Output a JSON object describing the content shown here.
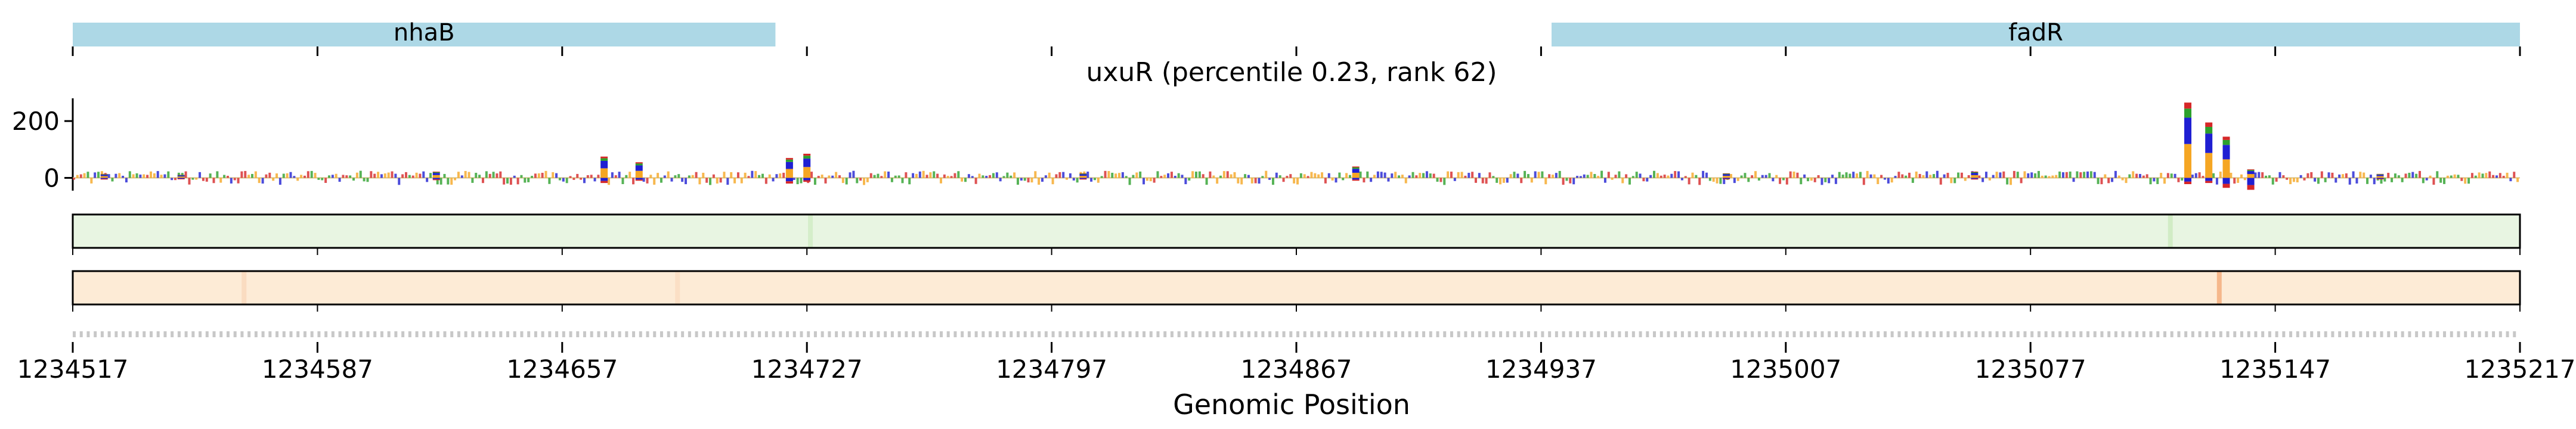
{
  "chart_data": {
    "type": "genome-track",
    "title": "uxuR (percentile 0.23, rank 62)",
    "xlabel": "Genomic Position",
    "ylabel": "",
    "xlim": [
      1234517,
      1235217
    ],
    "x_ticks": [
      1234517,
      1234587,
      1234657,
      1234727,
      1234797,
      1234867,
      1234937,
      1235007,
      1235077,
      1235147,
      1235217
    ],
    "genes": [
      {
        "name": "nhaB",
        "start": 1234517,
        "end": 1234718
      },
      {
        "name": "fadR",
        "start": 1234940,
        "end": 1235217
      }
    ],
    "attribution": {
      "ylim": [
        -45,
        280
      ],
      "y_ticks": [
        0,
        200
      ],
      "peaks": [
        {
          "x": 1234526,
          "pos": 14,
          "neg": -6
        },
        {
          "x": 1234548,
          "pos": 11,
          "neg": -5
        },
        {
          "x": 1234621,
          "pos": 22,
          "neg": -8
        },
        {
          "x": 1234669,
          "pos": 75,
          "neg": -18
        },
        {
          "x": 1234679,
          "pos": 55,
          "neg": -10
        },
        {
          "x": 1234722,
          "pos": 70,
          "neg": -20
        },
        {
          "x": 1234727,
          "pos": 85,
          "neg": -14
        },
        {
          "x": 1234806,
          "pos": 16,
          "neg": -6
        },
        {
          "x": 1234884,
          "pos": 40,
          "neg": -10
        },
        {
          "x": 1234990,
          "pos": 16,
          "neg": -5
        },
        {
          "x": 1235061,
          "pos": 22,
          "neg": -6
        },
        {
          "x": 1235122,
          "pos": 265,
          "neg": -22
        },
        {
          "x": 1235128,
          "pos": 195,
          "neg": -18
        },
        {
          "x": 1235133,
          "pos": 145,
          "neg": -35
        },
        {
          "x": 1235140,
          "pos": 30,
          "neg": -42
        },
        {
          "x": 1235177,
          "pos": 14,
          "neg": -5
        }
      ]
    },
    "heatmaps": [
      {
        "name": "track-1",
        "color": "#e8f5e2",
        "highlights": [
          {
            "x": 1234728,
            "intensity": 0.4
          },
          {
            "x": 1235117,
            "intensity": 0.5
          }
        ]
      },
      {
        "name": "track-2",
        "color": "#fdebd6",
        "highlights": [
          {
            "x": 1235131,
            "intensity": 0.9
          },
          {
            "x": 1234566,
            "intensity": 0.25
          },
          {
            "x": 1234690,
            "intensity": 0.2
          }
        ]
      }
    ]
  },
  "colors": {
    "gene_box": "#add8e6",
    "base_A": "#2ca02c",
    "base_C": "#1f1fd2",
    "base_G": "#f5a623",
    "base_T": "#d62728",
    "heat_green": "#e8f5e2",
    "heat_orange": "#fdebd6",
    "heat_peak": "#f4b183"
  }
}
